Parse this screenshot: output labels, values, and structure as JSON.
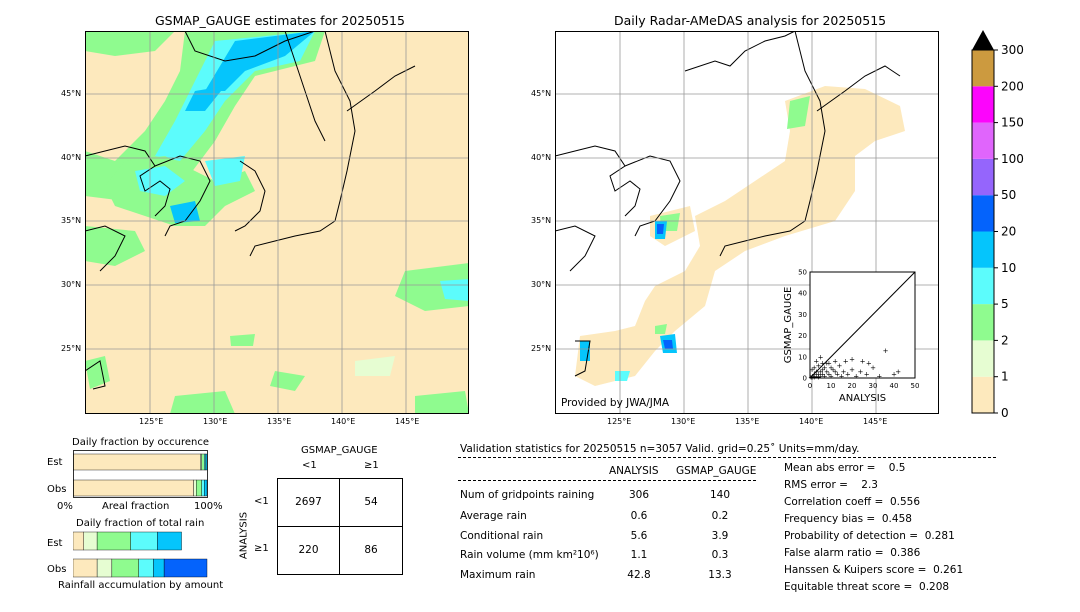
{
  "left_map": {
    "title": "GSMAP_GAUGE estimates for 20250515",
    "lat_labels": [
      "45°N",
      "40°N",
      "35°N",
      "30°N",
      "25°N"
    ],
    "lon_labels": [
      "125°E",
      "130°E",
      "135°E",
      "140°E",
      "145°E"
    ]
  },
  "right_map": {
    "title": "Daily Radar-AMeDAS analysis for 20250515",
    "lat_labels": [
      "45°N",
      "40°N",
      "35°N",
      "30°N",
      "25°N"
    ],
    "lon_labels": [
      "125°E",
      "130°E",
      "135°E",
      "140°E",
      "145°E"
    ],
    "credit": "Provided by JWA/JMA"
  },
  "colorbar": {
    "levels": [
      "0",
      "1",
      "2",
      "5",
      "10",
      "20",
      "50",
      "100",
      "150",
      "200",
      "300"
    ],
    "colors": [
      "#fde9bd",
      "#e6fdd2",
      "#8ffb8f",
      "#5cfcfc",
      "#05c5fc",
      "#0463fc",
      "#9565fc",
      "#e065fc",
      "#fc05fc",
      "#cc9a3f"
    ],
    "extend_color": "#000000"
  },
  "occurrence_chart": {
    "title": "Daily fraction by occurence",
    "rows": [
      "Est",
      "Obs"
    ],
    "axis_left": "0%",
    "axis_mid": "Areal fraction",
    "axis_right": "100%"
  },
  "rain_chart": {
    "title": "Daily fraction of total rain",
    "rows": [
      "Est",
      "Obs"
    ],
    "footer": "Rainfall accumulation by amount"
  },
  "contingency": {
    "column_header": "GSMAP_GAUGE",
    "col_labels": [
      "<1",
      "≥1"
    ],
    "row_header": "ANALYSIS",
    "row_labels": [
      "<1",
      "≥1"
    ],
    "values": [
      [
        "2697",
        "54"
      ],
      [
        "220",
        "86"
      ]
    ]
  },
  "validation": {
    "header": "Validation statistics for 20250515  n=3057 Valid. grid=0.25˚ Units=mm/day.",
    "col_headers": [
      "ANALYSIS",
      "GSMAP_GAUGE"
    ],
    "rows": [
      {
        "label": "Num of gridpoints raining",
        "analysis": "306",
        "gsmap": "140"
      },
      {
        "label": "Average rain",
        "analysis": "0.6",
        "gsmap": "0.2"
      },
      {
        "label": "Conditional rain",
        "analysis": "5.6",
        "gsmap": "3.9"
      },
      {
        "label": "Rain volume (mm km²10⁶)",
        "analysis": "1.1",
        "gsmap": "0.3"
      },
      {
        "label": "Maximum rain",
        "analysis": "42.8",
        "gsmap": "13.3"
      }
    ],
    "scores": [
      "Mean abs error =    0.5",
      "RMS error =    2.3",
      "Correlation coeff =  0.556",
      "Frequency bias =  0.458",
      "Probability of detection =  0.281",
      "False alarm ratio =  0.386",
      "Hanssen & Kuipers score =  0.261",
      "Equitable threat score =  0.208"
    ]
  },
  "chart_data": [
    {
      "type": "bar",
      "title": "Daily fraction by occurence",
      "categories": [
        "Est",
        "Obs"
      ],
      "series": [
        {
          "values": [
            0.95,
            0.9
          ]
        },
        {
          "values": [
            0.01,
            0.02
          ]
        },
        {
          "values": [
            0.02,
            0.04
          ]
        },
        {
          "values": [
            0.01,
            0.02
          ]
        },
        {
          "values": [
            0.01,
            0.02
          ]
        }
      ],
      "xlim": [
        0,
        1
      ]
    },
    {
      "type": "bar",
      "title": "Daily fraction of total rain",
      "categories": [
        "Est",
        "Obs"
      ],
      "series": [
        {
          "values": [
            0.08,
            0.18
          ]
        },
        {
          "values": [
            0.1,
            0.11
          ]
        },
        {
          "values": [
            0.25,
            0.2
          ]
        },
        {
          "values": [
            0.2,
            0.11
          ]
        },
        {
          "values": [
            0.18,
            0.08
          ]
        },
        {
          "values": [
            0.0,
            0.32
          ]
        }
      ],
      "xlim": [
        0,
        1
      ]
    },
    {
      "type": "scatter",
      "xlabel": "ANALYSIS",
      "ylabel": "GSMAP_GAUGE",
      "xlim": [
        0,
        50
      ],
      "ylim": [
        0,
        50
      ],
      "ticks": [
        0,
        10,
        20,
        30,
        40,
        50
      ],
      "points": [
        [
          0.5,
          0.5
        ],
        [
          1,
          0.3
        ],
        [
          1.5,
          1
        ],
        [
          2,
          0.5
        ],
        [
          2,
          2
        ],
        [
          3,
          1
        ],
        [
          3,
          3
        ],
        [
          4,
          2
        ],
        [
          4,
          0.5
        ],
        [
          5,
          1
        ],
        [
          5,
          3
        ],
        [
          6,
          2
        ],
        [
          6,
          4
        ],
        [
          7,
          1
        ],
        [
          7,
          5
        ],
        [
          8,
          3
        ],
        [
          8,
          7
        ],
        [
          9,
          2
        ],
        [
          10,
          5
        ],
        [
          10,
          1
        ],
        [
          11,
          4
        ],
        [
          12,
          3
        ],
        [
          13,
          2
        ],
        [
          14,
          6
        ],
        [
          15,
          1
        ],
        [
          16,
          3
        ],
        [
          17,
          8
        ],
        [
          18,
          2
        ],
        [
          20,
          4
        ],
        [
          22,
          1
        ],
        [
          24,
          3
        ],
        [
          25,
          8
        ],
        [
          27,
          2
        ],
        [
          30,
          5
        ],
        [
          33,
          1
        ],
        [
          36,
          13
        ],
        [
          40,
          2
        ],
        [
          42,
          3
        ],
        [
          3,
          8
        ],
        [
          5,
          10
        ],
        [
          9,
          7
        ],
        [
          12,
          8
        ],
        [
          20,
          9
        ],
        [
          28,
          7
        ],
        [
          2,
          5
        ],
        [
          6,
          7
        ],
        [
          1,
          4
        ],
        [
          4,
          6
        ]
      ]
    }
  ]
}
